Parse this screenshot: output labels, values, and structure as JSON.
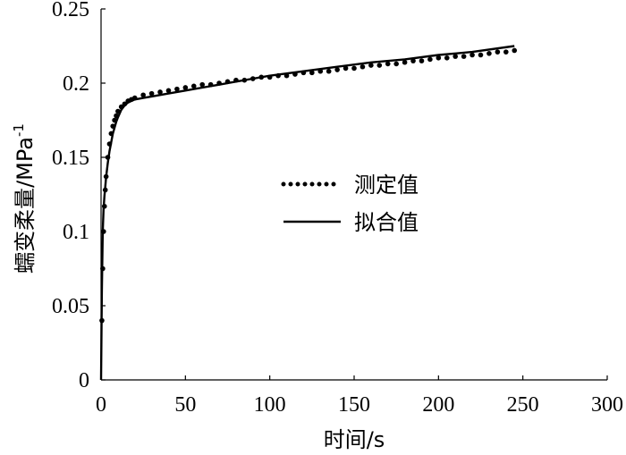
{
  "chart_data": {
    "type": "line",
    "title": "",
    "xlabel": "时间/s",
    "ylabel_main": "蠕变柔量/MPa",
    "ylabel_sup": "-1",
    "xlim": [
      0,
      300
    ],
    "ylim": [
      0,
      0.25
    ],
    "x_ticks": [
      "0",
      "50",
      "100",
      "150",
      "200",
      "250",
      "300"
    ],
    "y_ticks": [
      "0",
      "0.05",
      "0.1",
      "0.15",
      "0.2",
      "0.25"
    ],
    "grid": false,
    "legend_position": "center-right",
    "series": [
      {
        "name": "测定值",
        "style": "dotted",
        "color": "#000000",
        "x": [
          0.5,
          1,
          1.5,
          2,
          2.5,
          3,
          4,
          5,
          6,
          7,
          8,
          9,
          10,
          12,
          14,
          16,
          18,
          20,
          25,
          30,
          35,
          40,
          45,
          50,
          55,
          60,
          65,
          70,
          75,
          80,
          85,
          90,
          95,
          100,
          105,
          110,
          115,
          120,
          125,
          130,
          135,
          140,
          145,
          150,
          155,
          160,
          165,
          170,
          175,
          180,
          185,
          190,
          195,
          200,
          205,
          210,
          215,
          220,
          225,
          230,
          235,
          240,
          245
        ],
        "y": [
          0.04,
          0.075,
          0.1,
          0.117,
          0.128,
          0.137,
          0.15,
          0.159,
          0.166,
          0.171,
          0.175,
          0.178,
          0.181,
          0.184,
          0.186,
          0.188,
          0.189,
          0.19,
          0.192,
          0.193,
          0.194,
          0.195,
          0.196,
          0.197,
          0.198,
          0.199,
          0.199,
          0.2,
          0.201,
          0.202,
          0.202,
          0.203,
          0.204,
          0.204,
          0.205,
          0.205,
          0.206,
          0.207,
          0.207,
          0.208,
          0.208,
          0.209,
          0.21,
          0.21,
          0.211,
          0.212,
          0.212,
          0.213,
          0.213,
          0.214,
          0.215,
          0.215,
          0.216,
          0.217,
          0.217,
          0.218,
          0.218,
          0.219,
          0.219,
          0.22,
          0.221,
          0.221,
          0.222
        ]
      },
      {
        "name": "拟合值",
        "style": "solid",
        "color": "#000000",
        "x": [
          0,
          0.5,
          1,
          1.5,
          2,
          3,
          4,
          5,
          6,
          7,
          8,
          9,
          10,
          12,
          14,
          16,
          18,
          20,
          25,
          30,
          40,
          50,
          60,
          70,
          80,
          90,
          100,
          120,
          140,
          160,
          180,
          200,
          220,
          245
        ],
        "y": [
          0.0,
          0.06,
          0.1,
          0.115,
          0.124,
          0.137,
          0.146,
          0.154,
          0.16,
          0.166,
          0.17,
          0.174,
          0.177,
          0.182,
          0.185,
          0.187,
          0.188,
          0.189,
          0.19,
          0.191,
          0.193,
          0.195,
          0.197,
          0.199,
          0.201,
          0.203,
          0.205,
          0.208,
          0.211,
          0.214,
          0.216,
          0.219,
          0.221,
          0.225
        ]
      }
    ]
  }
}
